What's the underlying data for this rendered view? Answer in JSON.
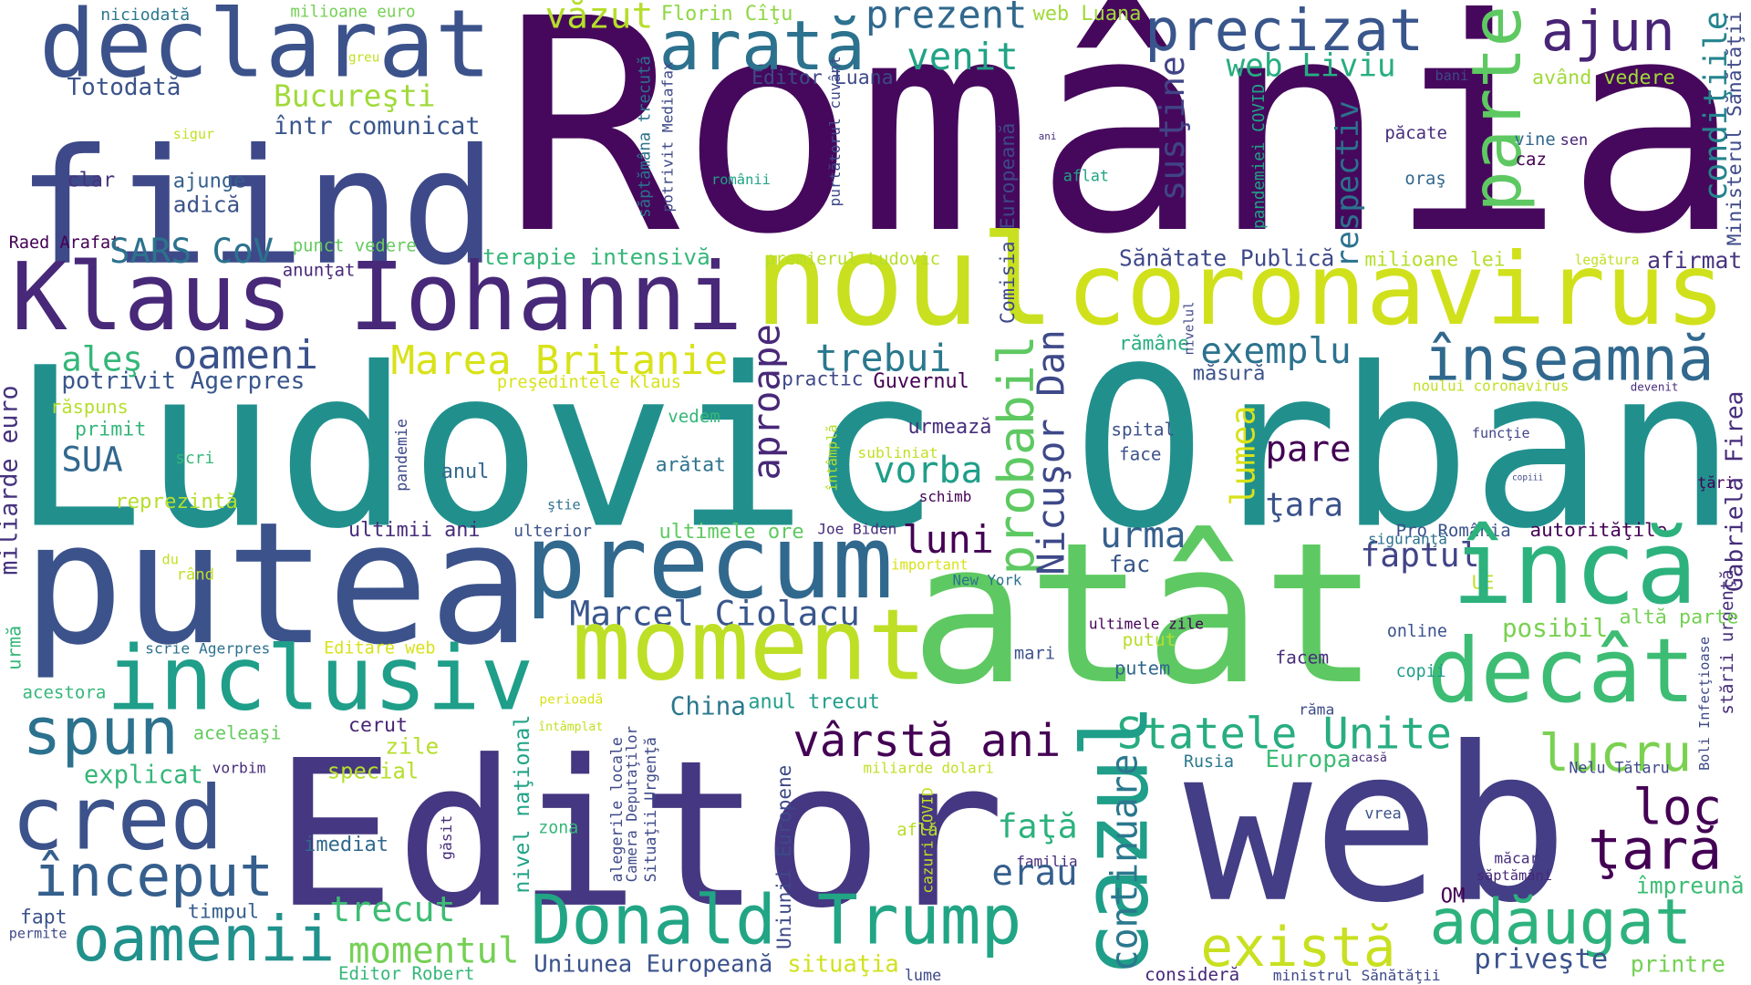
{
  "words": [
    "România",
    "Ludovic Orban",
    "Editor",
    "atât",
    "web",
    "putea",
    "fiind",
    "Klaus Iohanni",
    "noul",
    "coronavirus",
    "declarat",
    "precizat",
    "arată",
    "prezent",
    "văzut",
    "Florin Cîţu",
    "web Luana",
    "ajun",
    "parte",
    "condiţiile",
    "Ministerul Sănătăţii",
    "Bucureşti",
    "într comunicat",
    "Totodată",
    "niciodată",
    "milioane euro",
    "greu",
    "Editor Luana",
    "venit",
    "web Liviu",
    "susţine",
    "respectiv",
    "bani",
    "având vedere",
    "săptămâna trecută",
    "potrivit Mediafax",
    "purtătorul cuvânt",
    "românii",
    "Comisia Europeană",
    "ani",
    "pandemiei COVID",
    "păcate",
    "vine",
    "sen",
    "caz",
    "aflat",
    "oraş",
    "sigur",
    "clar",
    "ajunge",
    "adică",
    "Raed Arafat",
    "SARS CoV",
    "punct vedere",
    "anunţat",
    "terapie intensivă",
    "premierul Ludovic",
    "Sănătate Publică",
    "milioane lei",
    "legătura",
    "afirmat",
    "rămâne",
    "nivelul",
    "măsură",
    "exemplu",
    "înseamnă",
    "aleş",
    "oameni",
    "Marea Britanie",
    "aproape",
    "trebui",
    "probabil",
    "Nicuşor Dan",
    "potrivit Agerpres",
    "preşedintele Klaus",
    "practic",
    "Guvernul",
    "noului coronavirus",
    "devenit",
    "miliarde euro",
    "răspuns",
    "primit",
    "SUA",
    "scri",
    "pandemie",
    "vedem",
    "arătat",
    "urmează",
    "subliniat",
    "întâmplă",
    "anul",
    "vorba",
    "lumea",
    "spital",
    "face",
    "pare",
    "funcţie",
    "copiii",
    "ţări",
    "Gabriela Firea",
    "schimb",
    "ştie",
    "ţara",
    "reprezintă",
    "ultimii ani",
    "ulterior",
    "ultimele ore",
    "Joe Biden",
    "luni",
    "urma",
    "faptul",
    "Pro România",
    "autorităţile",
    "du",
    "rând",
    "important",
    "fac",
    "New York",
    "siguranţă",
    "UE",
    "stării urgenţă",
    "Marcel Ciolacu",
    "precum",
    "încă",
    "posibil",
    "altă parte",
    "ultimele zile",
    "online",
    "putut",
    "urmă",
    "scrie Agerpres",
    "Editare web",
    "inclusiv",
    "moment",
    "decât",
    "mari",
    "putem",
    "facem",
    "Boli Infecţioase",
    "copii",
    "acestora",
    "perioadă",
    "China",
    "anul trecut",
    "spun",
    "aceleaşi",
    "cerut",
    "întâmplat",
    "nivel naţional",
    "alegerile locale",
    "Camera Deputaţilor",
    "Situaţii Urgenţă",
    "Uniunii Europene",
    "vârstă ani",
    "Statele Unite",
    "lucru",
    "răma",
    "zile",
    "cazul",
    "special",
    "explicat",
    "vorbim",
    "miliarde dolari",
    "Europa",
    "Rusia",
    "acasă",
    "Nelu Tătaru",
    "continuare",
    "cred",
    "imediat",
    "zona",
    "găsit",
    "cazuri COVID",
    "familia",
    "faţă",
    "loc",
    "află",
    "vrea",
    "ţară",
    "început",
    "erau",
    "măcar",
    "săptămâni",
    "împreună",
    "OM",
    "fapt",
    "permite",
    "timpul",
    "trecut",
    "oamenii",
    "momentul",
    "Donald Trump",
    "există",
    "adăugat",
    "Uniunea Europeană",
    "situaţia",
    "lume",
    "consideră",
    "ministrul Sănătăţii",
    "priveşte",
    "printre",
    "Editor Robert"
  ]
}
